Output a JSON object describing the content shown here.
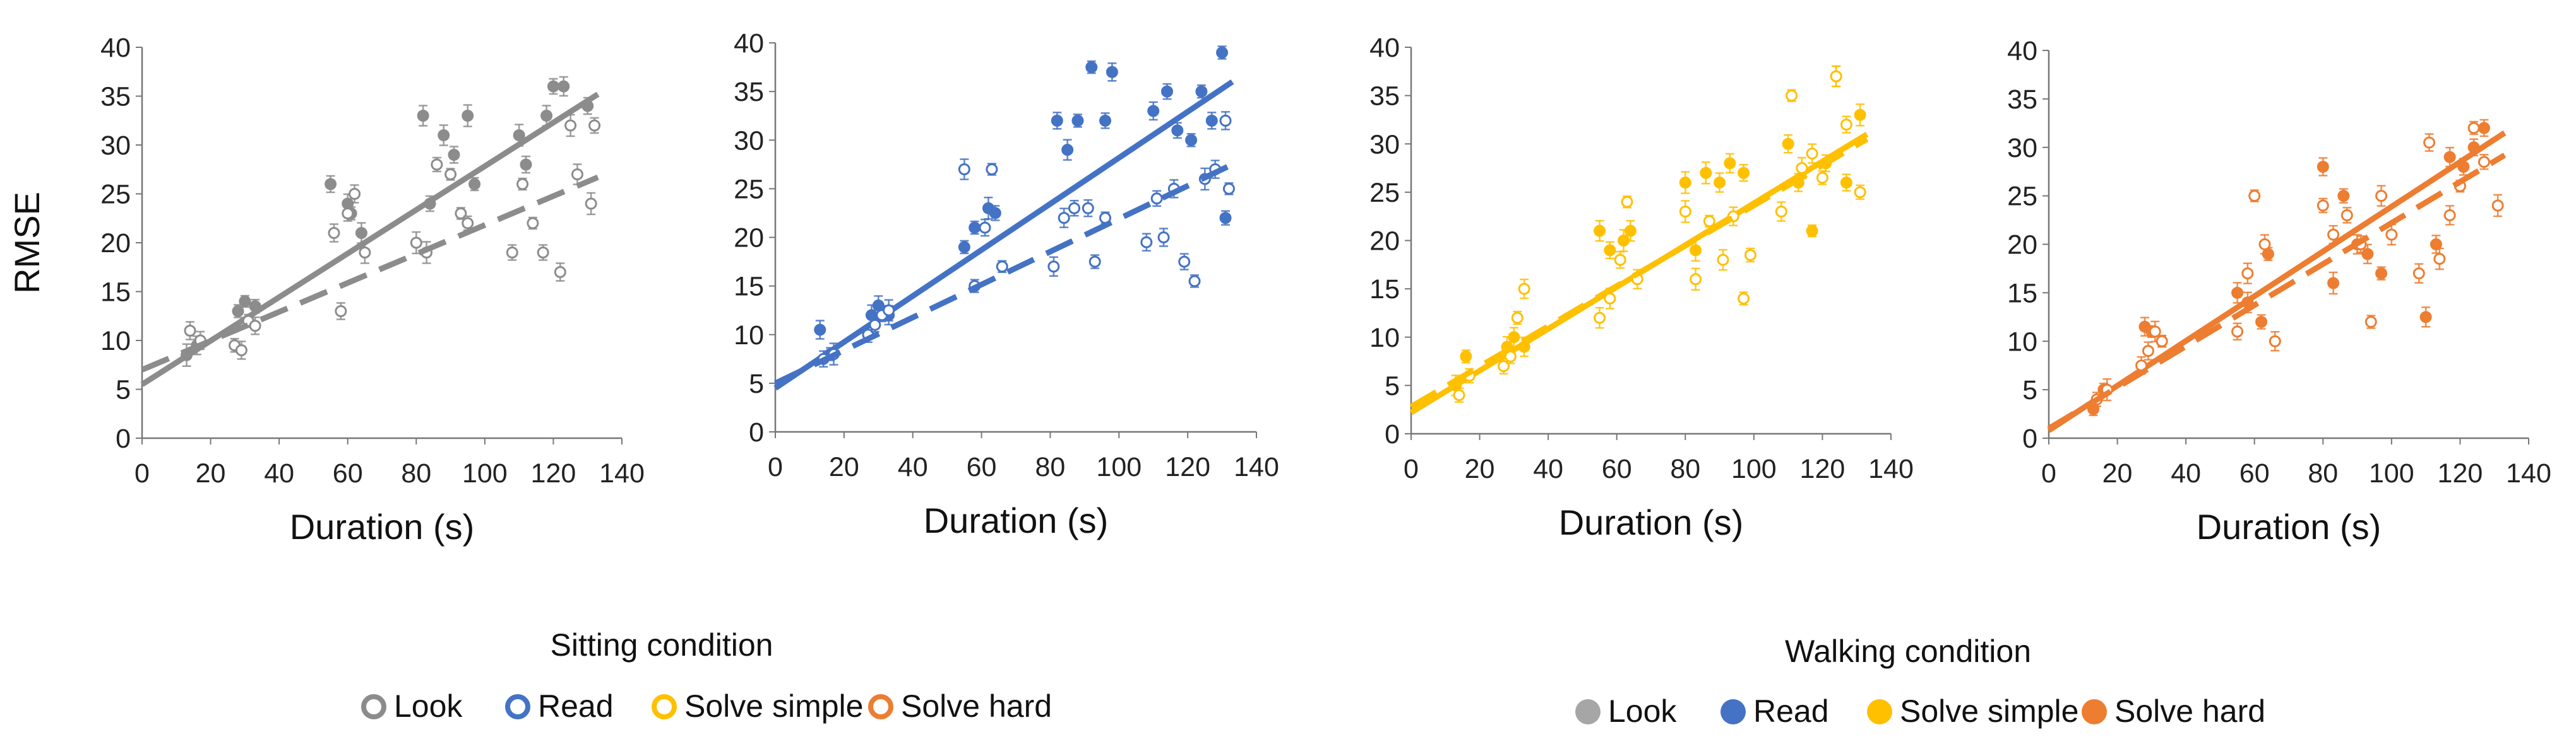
{
  "chart_data": [
    {
      "type": "scatter",
      "color": "#8c8c8c",
      "xlabel": "Duration (s)",
      "ylabel": "RMSE",
      "xlim": [
        0,
        140
      ],
      "ylim": [
        0,
        40
      ],
      "xticks": [
        "0",
        "20",
        "40",
        "60",
        "80",
        "100",
        "120",
        "140"
      ],
      "yticks": [
        "0",
        "5",
        "10",
        "15",
        "20",
        "25",
        "30",
        "35",
        "40"
      ],
      "series": [
        {
          "name": "Walking (filled)",
          "fit": [
            5.5,
            35.2
          ],
          "points": [
            [
              13,
              8.5
            ],
            [
              16,
              9.5
            ],
            [
              28,
              13
            ],
            [
              30,
              14
            ],
            [
              33,
              13.5
            ],
            [
              55,
              26
            ],
            [
              60,
              24
            ],
            [
              61,
              23
            ],
            [
              64,
              21
            ],
            [
              82,
              33
            ],
            [
              84,
              24
            ],
            [
              88,
              31
            ],
            [
              91,
              29
            ],
            [
              95,
              33
            ],
            [
              97,
              26
            ],
            [
              110,
              31
            ],
            [
              112,
              28
            ],
            [
              118,
              33
            ],
            [
              120,
              36
            ],
            [
              123,
              36
            ],
            [
              130,
              34
            ]
          ]
        },
        {
          "name": "Sitting (open)",
          "fit": [
            7,
            26.7
          ],
          "points": [
            [
              14,
              11
            ],
            [
              17,
              10
            ],
            [
              27,
              9.5
            ],
            [
              29,
              9
            ],
            [
              31,
              12
            ],
            [
              33,
              11.5
            ],
            [
              56,
              21
            ],
            [
              58,
              13
            ],
            [
              60,
              23
            ],
            [
              62,
              25
            ],
            [
              65,
              19
            ],
            [
              80,
              20
            ],
            [
              83,
              19
            ],
            [
              86,
              28
            ],
            [
              90,
              27
            ],
            [
              93,
              23
            ],
            [
              95,
              22
            ],
            [
              108,
              19
            ],
            [
              111,
              26
            ],
            [
              114,
              22
            ],
            [
              117,
              19
            ],
            [
              122,
              17
            ],
            [
              125,
              32
            ],
            [
              127,
              27
            ],
            [
              131,
              24
            ],
            [
              132,
              32
            ]
          ]
        }
      ]
    },
    {
      "type": "scatter",
      "color": "#4472c4",
      "xlabel": "Duration (s)",
      "ylabel": "",
      "xlim": [
        0,
        140
      ],
      "ylim": [
        0,
        40
      ],
      "xticks": [
        "0",
        "20",
        "40",
        "60",
        "80",
        "100",
        "120",
        "140"
      ],
      "yticks": [
        "0",
        "5",
        "10",
        "15",
        "20",
        "25",
        "30",
        "35",
        "40"
      ],
      "series": [
        {
          "name": "Walking (filled)",
          "fit": [
            4.5,
            36
          ],
          "points": [
            [
              13,
              10.5
            ],
            [
              16,
              8
            ],
            [
              28,
              12
            ],
            [
              30,
              13
            ],
            [
              33,
              12
            ],
            [
              55,
              19
            ],
            [
              58,
              21
            ],
            [
              62,
              23
            ],
            [
              64,
              22.5
            ],
            [
              82,
              32
            ],
            [
              85,
              29
            ],
            [
              88,
              32
            ],
            [
              92,
              37.5
            ],
            [
              96,
              32
            ],
            [
              98,
              37
            ],
            [
              110,
              33
            ],
            [
              114,
              35
            ],
            [
              117,
              31
            ],
            [
              121,
              30
            ],
            [
              124,
              35
            ],
            [
              127,
              32
            ],
            [
              130,
              39
            ],
            [
              131,
              22
            ]
          ]
        },
        {
          "name": "Sitting (open)",
          "fit": [
            5,
            27.5
          ],
          "points": [
            [
              14,
              7.5
            ],
            [
              17,
              8
            ],
            [
              27,
              10
            ],
            [
              29,
              11
            ],
            [
              31,
              12
            ],
            [
              33,
              12.5
            ],
            [
              55,
              27
            ],
            [
              58,
              15
            ],
            [
              61,
              21
            ],
            [
              63,
              27
            ],
            [
              66,
              17
            ],
            [
              81,
              17
            ],
            [
              84,
              22
            ],
            [
              87,
              23
            ],
            [
              91,
              23
            ],
            [
              93,
              17.5
            ],
            [
              96,
              22
            ],
            [
              108,
              19.5
            ],
            [
              111,
              24
            ],
            [
              113,
              20
            ],
            [
              116,
              25
            ],
            [
              119,
              17.5
            ],
            [
              122,
              15.5
            ],
            [
              125,
              26
            ],
            [
              128,
              27
            ],
            [
              131,
              32
            ],
            [
              132,
              25
            ]
          ]
        }
      ]
    },
    {
      "type": "scatter",
      "color": "#ffc000",
      "xlabel": "Duration (s)",
      "ylabel": "",
      "xlim": [
        0,
        140
      ],
      "ylim": [
        0,
        40
      ],
      "xticks": [
        "0",
        "20",
        "40",
        "60",
        "80",
        "100",
        "120",
        "140"
      ],
      "yticks": [
        "0",
        "5",
        "10",
        "15",
        "20",
        "25",
        "30",
        "35",
        "40"
      ],
      "series": [
        {
          "name": "Walking (filled)",
          "fit": [
            2.2,
            31
          ],
          "points": [
            [
              13,
              5
            ],
            [
              16,
              8
            ],
            [
              28,
              9
            ],
            [
              30,
              10
            ],
            [
              33,
              9
            ],
            [
              55,
              21
            ],
            [
              58,
              19
            ],
            [
              62,
              20
            ],
            [
              64,
              21
            ],
            [
              80,
              26
            ],
            [
              83,
              19
            ],
            [
              86,
              27
            ],
            [
              90,
              26
            ],
            [
              93,
              28
            ],
            [
              97,
              27
            ],
            [
              110,
              30
            ],
            [
              113,
              26
            ],
            [
              117,
              21
            ],
            [
              121,
              28
            ],
            [
              124,
              37
            ],
            [
              127,
              26
            ],
            [
              131,
              33
            ]
          ]
        },
        {
          "name": "Sitting (open)",
          "fit": [
            2.8,
            30.5
          ],
          "points": [
            [
              14,
              4
            ],
            [
              17,
              6
            ],
            [
              27,
              7
            ],
            [
              29,
              8
            ],
            [
              31,
              12
            ],
            [
              33,
              15
            ],
            [
              55,
              12
            ],
            [
              58,
              14
            ],
            [
              61,
              18
            ],
            [
              63,
              24
            ],
            [
              66,
              16
            ],
            [
              80,
              23
            ],
            [
              83,
              16
            ],
            [
              87,
              22
            ],
            [
              91,
              18
            ],
            [
              94,
              22.5
            ],
            [
              97,
              14
            ],
            [
              99,
              18.5
            ],
            [
              108,
              23
            ],
            [
              111,
              35
            ],
            [
              114,
              27.5
            ],
            [
              117,
              29
            ],
            [
              120,
              26.5
            ],
            [
              124,
              37
            ],
            [
              127,
              32
            ],
            [
              131,
              25
            ]
          ]
        }
      ]
    },
    {
      "type": "scatter",
      "color": "#ed7d31",
      "xlabel": "Duration (s)",
      "ylabel": "",
      "xlim": [
        0,
        140
      ],
      "ylim": [
        0,
        40
      ],
      "xticks": [
        "0",
        "20",
        "40",
        "60",
        "80",
        "100",
        "120",
        "140"
      ],
      "yticks": [
        "0",
        "5",
        "10",
        "15",
        "20",
        "25",
        "30",
        "35",
        "40"
      ],
      "series": [
        {
          "name": "Walking (filled)",
          "fit": [
            0.8,
            31.5
          ],
          "points": [
            [
              13,
              3
            ],
            [
              16,
              5
            ],
            [
              28,
              11.5
            ],
            [
              30,
              11
            ],
            [
              33,
              10
            ],
            [
              55,
              15
            ],
            [
              58,
              14
            ],
            [
              62,
              12
            ],
            [
              64,
              19
            ],
            [
              80,
              28
            ],
            [
              83,
              16
            ],
            [
              86,
              25
            ],
            [
              90,
              20
            ],
            [
              93,
              19
            ],
            [
              97,
              17
            ],
            [
              110,
              12.5
            ],
            [
              113,
              20
            ],
            [
              117,
              29
            ],
            [
              121,
              28
            ],
            [
              124,
              30
            ],
            [
              127,
              32
            ]
          ]
        },
        {
          "name": "Sitting (open)",
          "fit": [
            1,
            29.2
          ],
          "points": [
            [
              14,
              4
            ],
            [
              17,
              5
            ],
            [
              27,
              7.5
            ],
            [
              29,
              9
            ],
            [
              31,
              11
            ],
            [
              33,
              10
            ],
            [
              55,
              11
            ],
            [
              58,
              17
            ],
            [
              60,
              25
            ],
            [
              63,
              20
            ],
            [
              66,
              10
            ],
            [
              80,
              24
            ],
            [
              83,
              21
            ],
            [
              87,
              23
            ],
            [
              91,
              20
            ],
            [
              94,
              12
            ],
            [
              97,
              25
            ],
            [
              100,
              21
            ],
            [
              108,
              17
            ],
            [
              111,
              30.5
            ],
            [
              114,
              18.5
            ],
            [
              117,
              23
            ],
            [
              120,
              26
            ],
            [
              124,
              32
            ],
            [
              127,
              28.5
            ],
            [
              131,
              24
            ]
          ]
        }
      ]
    }
  ],
  "legend": {
    "sitting": {
      "title": "Sitting condition",
      "items": [
        {
          "label": "Look",
          "color": "#8c8c8c",
          "fill": "open"
        },
        {
          "label": "Read",
          "color": "#4472c4",
          "fill": "open"
        },
        {
          "label": "Solve simple",
          "color": "#ffc000",
          "fill": "open"
        },
        {
          "label": "Solve hard",
          "color": "#ed7d31",
          "fill": "open"
        }
      ]
    },
    "walking": {
      "title": "Walking condition",
      "items": [
        {
          "label": "Look",
          "color": "#a6a6a6",
          "fill": "filled"
        },
        {
          "label": "Read",
          "color": "#4472c4",
          "fill": "filled"
        },
        {
          "label": "Solve simple",
          "color": "#ffc000",
          "fill": "filled"
        },
        {
          "label": "Solve hard",
          "color": "#ed7d31",
          "fill": "filled"
        }
      ]
    }
  }
}
